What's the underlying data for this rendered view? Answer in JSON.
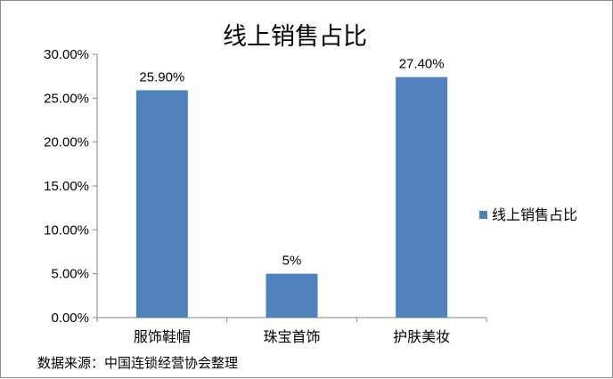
{
  "chart_data": {
    "type": "bar",
    "title": "线上销售占比",
    "categories": [
      "服饰鞋帽",
      "珠宝首饰",
      "护肤美妆"
    ],
    "series": [
      {
        "name": "线上销售占比",
        "values": [
          25.9,
          5,
          27.4
        ],
        "labels": [
          "25.90%",
          "5%",
          "27.40%"
        ],
        "color": "#4f81bd"
      }
    ],
    "y_ticks": [
      "0.00%",
      "5.00%",
      "10.00%",
      "15.00%",
      "20.00%",
      "25.00%",
      "30.00%"
    ],
    "ylim": [
      0,
      30
    ],
    "y_unit": "percent",
    "grid": false,
    "legend_position": "right"
  },
  "source_note": "数据来源：中国连锁经营协会整理"
}
